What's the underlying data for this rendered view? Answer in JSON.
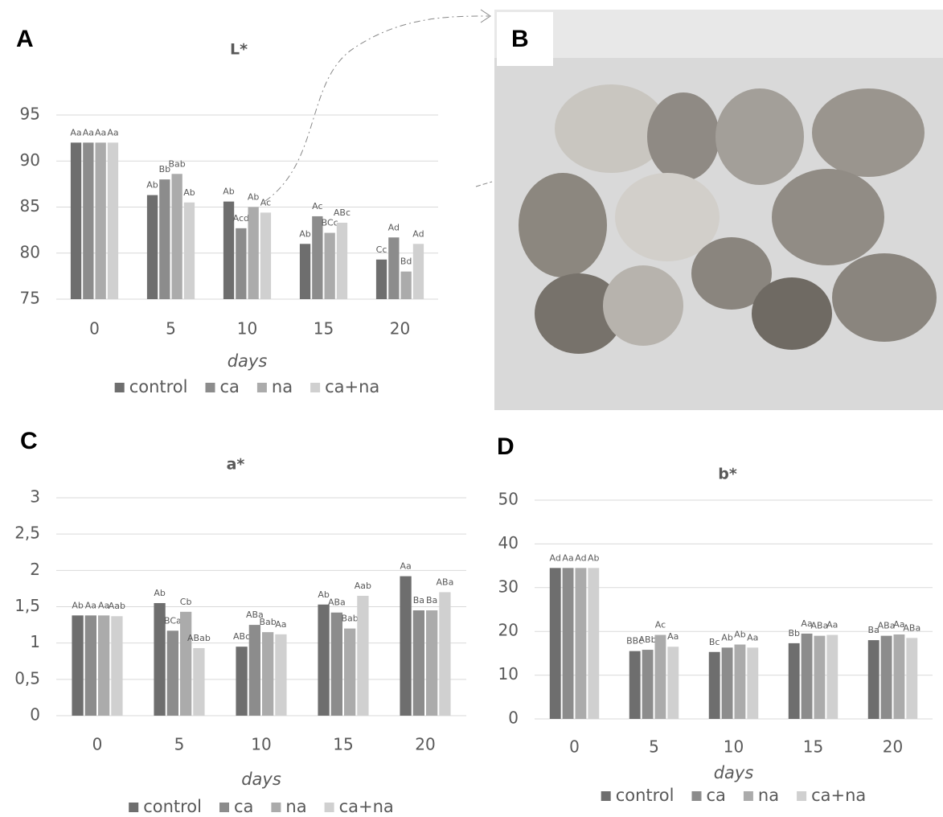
{
  "chart_data": [
    {
      "type": "bar",
      "panel_label": "A",
      "title": "L*",
      "x_label": "days",
      "categories": [
        "0",
        "5",
        "10",
        "15",
        "20"
      ],
      "ylim": [
        75,
        95
      ],
      "yticks": [
        75,
        80,
        85,
        90,
        95
      ],
      "grid": true,
      "series": [
        {
          "name": "control",
          "color": "#6e6e6e",
          "values": [
            92,
            86.3,
            85.6,
            81,
            79.3
          ],
          "letters": [
            "Aa",
            "Ab",
            "Ab",
            "Ab",
            "Cc"
          ]
        },
        {
          "name": "ca",
          "color": "#8c8c8c",
          "values": [
            92,
            88,
            82.7,
            84,
            81.7
          ],
          "letters": [
            "Aa",
            "Bb",
            "Acd",
            "Ac",
            "Ad"
          ]
        },
        {
          "name": "na",
          "color": "#ababab",
          "values": [
            92,
            88.6,
            85,
            82.2,
            78
          ],
          "letters": [
            "Aa",
            "Bab",
            "Ab",
            "BCc",
            "Bd"
          ]
        },
        {
          "name": "ca+na",
          "color": "#d0d0d0",
          "values": [
            92,
            85.5,
            84.4,
            83.3,
            81
          ],
          "letters": [
            "Aa",
            "Ab",
            "Ac",
            "ABc",
            "Ad"
          ]
        }
      ]
    },
    {
      "type": "bar",
      "panel_label": "C",
      "title": "a*",
      "x_label": "days",
      "categories": [
        "0",
        "5",
        "10",
        "15",
        "20"
      ],
      "ylim": [
        0,
        3
      ],
      "yticks": [
        0,
        {
          "value": 0.5,
          "label": "0,5"
        },
        1,
        {
          "value": 1.5,
          "label": "1,5"
        },
        2,
        {
          "value": 2.5,
          "label": "2,5"
        },
        3
      ],
      "grid": true,
      "series": [
        {
          "name": "control",
          "color": "#6e6e6e",
          "values": [
            1.38,
            1.55,
            0.95,
            1.53,
            1.92
          ],
          "letters": [
            "Ab",
            "Ab",
            "ABc",
            "Ab",
            "Aa"
          ]
        },
        {
          "name": "ca",
          "color": "#8c8c8c",
          "values": [
            1.38,
            1.17,
            1.25,
            1.42,
            1.45
          ],
          "letters": [
            "Aa",
            "BCa",
            "ABa",
            "ABa",
            "Ba"
          ]
        },
        {
          "name": "na",
          "color": "#ababab",
          "values": [
            1.38,
            1.43,
            1.15,
            1.2,
            1.45
          ],
          "letters": [
            "Aa",
            "Cb",
            "Bab",
            "Bab",
            "Ba"
          ]
        },
        {
          "name": "ca+na",
          "color": "#d0d0d0",
          "values": [
            1.37,
            0.93,
            1.12,
            1.65,
            1.7
          ],
          "letters": [
            "Aab",
            "ABab",
            "Aa",
            "Aab",
            "ABa"
          ]
        }
      ]
    },
    {
      "type": "bar",
      "panel_label": "D",
      "title": "b*",
      "x_label": "days",
      "categories": [
        "0",
        "5",
        "10",
        "15",
        "20"
      ],
      "ylim": [
        0,
        50
      ],
      "yticks": [
        0,
        10,
        20,
        30,
        40,
        50
      ],
      "grid": true,
      "series": [
        {
          "name": "control",
          "color": "#6e6e6e",
          "values": [
            34.5,
            15.5,
            15.3,
            17.3,
            18
          ],
          "letters": [
            "Ad",
            "BBc",
            "Bc",
            "Bb",
            "Ba"
          ]
        },
        {
          "name": "ca",
          "color": "#8c8c8c",
          "values": [
            34.5,
            15.8,
            16.3,
            19.5,
            19
          ],
          "letters": [
            "Aa",
            "ABb",
            "Ab",
            "Aa",
            "ABa"
          ]
        },
        {
          "name": "na",
          "color": "#ababab",
          "values": [
            34.5,
            19.2,
            17,
            19,
            19.3
          ],
          "letters": [
            "Ad",
            "Ac",
            "Ab",
            "ABa",
            "Aa"
          ]
        },
        {
          "name": "ca+na",
          "color": "#d0d0d0",
          "values": [
            34.5,
            16.5,
            16.3,
            19.2,
            18.5
          ],
          "letters": [
            "Ab",
            "Aa",
            "Aa",
            "Aa",
            "ABa"
          ]
        }
      ]
    }
  ],
  "photo": {
    "panel_label": "B"
  }
}
